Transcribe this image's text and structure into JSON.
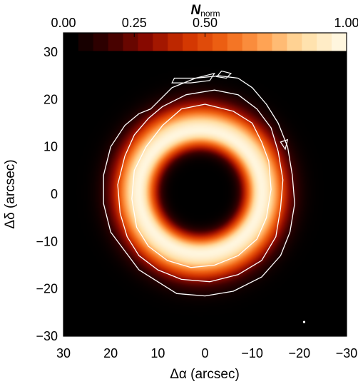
{
  "chart_data": {
    "type": "heatmap",
    "title": "",
    "colorbar": {
      "label": "N",
      "label_subscript": "norm",
      "range": [
        0,
        1
      ],
      "tick_labels": [
        "0.00",
        "0.25",
        "0.50",
        "1.00"
      ],
      "tick_values": [
        0.0,
        0.25,
        0.5,
        1.0
      ],
      "discrete_levels": 19,
      "colormap": [
        "#000000",
        "#3a0000",
        "#8c0a00",
        "#d03200",
        "#f06414",
        "#ffa050",
        "#ffdca0",
        "#fff6de"
      ]
    },
    "xlabel": "Δα (arcsec)",
    "ylabel": "Δδ (arcsec)",
    "xlim": [
      30,
      -30
    ],
    "ylim": [
      -30,
      30
    ],
    "x_tick_labels": [
      "30",
      "20",
      "10",
      "0",
      "−10",
      "−20",
      "−30"
    ],
    "x_tick_values": [
      30,
      20,
      10,
      0,
      -10,
      -20,
      -30
    ],
    "y_tick_labels": [
      "30",
      "20",
      "10",
      "0",
      "−10",
      "−20",
      "−30"
    ],
    "y_tick_values": [
      30,
      20,
      10,
      0,
      -10,
      -20,
      -30
    ],
    "ring_model": {
      "center": [
        1.0,
        0.5
      ],
      "peak_radius": 13.0,
      "inner_falloff": 3.6,
      "outer_falloff": 5.2,
      "hole_radius": 9.0
    },
    "contour_levels_count": 3,
    "contour_color": "#ffffff",
    "contours": [
      {
        "name": "outer",
        "points": [
          [
            11.5,
            18
          ],
          [
            7,
            22.5
          ],
          [
            2,
            24.5
          ],
          [
            -3,
            25
          ],
          [
            -7,
            24.5
          ],
          [
            -10,
            22.5
          ],
          [
            -13,
            19
          ],
          [
            -15.5,
            15
          ],
          [
            -17.5,
            10
          ],
          [
            -18.5,
            4
          ],
          [
            -19,
            -2
          ],
          [
            -18,
            -8
          ],
          [
            -16,
            -13
          ],
          [
            -12,
            -17.5
          ],
          [
            -6,
            -20.5
          ],
          [
            0,
            -21.5
          ],
          [
            6,
            -21
          ],
          [
            10,
            -18.5
          ],
          [
            14,
            -16
          ],
          [
            17,
            -12
          ],
          [
            20,
            -8
          ],
          [
            21.5,
            -2
          ],
          [
            21.5,
            4
          ],
          [
            20,
            10
          ],
          [
            17,
            14.5
          ],
          [
            14,
            17
          ]
        ]
      },
      {
        "name": "middle",
        "points": [
          [
            9,
            18.5
          ],
          [
            4,
            21
          ],
          [
            -2,
            22
          ],
          [
            -7,
            21
          ],
          [
            -11,
            18
          ],
          [
            -14,
            14
          ],
          [
            -15.5,
            9
          ],
          [
            -16.5,
            3
          ],
          [
            -16,
            -3
          ],
          [
            -15,
            -9
          ],
          [
            -12,
            -14
          ],
          [
            -7,
            -17
          ],
          [
            -1,
            -18.5
          ],
          [
            5,
            -18
          ],
          [
            10,
            -16
          ],
          [
            14,
            -13
          ],
          [
            16.5,
            -9
          ],
          [
            18,
            -4
          ],
          [
            18.5,
            2
          ],
          [
            17,
            8
          ],
          [
            15,
            12.5
          ],
          [
            12,
            16
          ]
        ]
      },
      {
        "name": "inner",
        "points": [
          [
            5,
            18
          ],
          [
            0,
            19
          ],
          [
            -6,
            17.5
          ],
          [
            -10,
            15
          ],
          [
            -12,
            11
          ],
          [
            -13.5,
            7
          ],
          [
            -14,
            1
          ],
          [
            -13,
            -5
          ],
          [
            -11,
            -9.5
          ],
          [
            -7,
            -13
          ],
          [
            -2,
            -15
          ],
          [
            3,
            -15.5
          ],
          [
            8,
            -14
          ],
          [
            12,
            -11
          ],
          [
            14.5,
            -7
          ],
          [
            15.5,
            -1
          ],
          [
            15,
            5
          ],
          [
            12.5,
            10
          ],
          [
            9,
            14.5
          ]
        ]
      }
    ],
    "islands": [
      {
        "points": [
          [
            6.5,
            24.5
          ],
          [
            2,
            24.5
          ],
          [
            -2,
            25.5
          ],
          [
            -1,
            24
          ],
          [
            3,
            23.5
          ],
          [
            7,
            23.5
          ]
        ]
      },
      {
        "points": [
          [
            -3.5,
            26
          ],
          [
            -2.5,
            24.8
          ],
          [
            -4.5,
            24.5
          ],
          [
            -5.5,
            25.5
          ]
        ]
      },
      {
        "points": [
          [
            -16,
            11
          ],
          [
            -17,
            9.5
          ],
          [
            -17.5,
            11.5
          ]
        ]
      }
    ],
    "markers": [
      {
        "x": -21,
        "y": -27
      }
    ]
  }
}
